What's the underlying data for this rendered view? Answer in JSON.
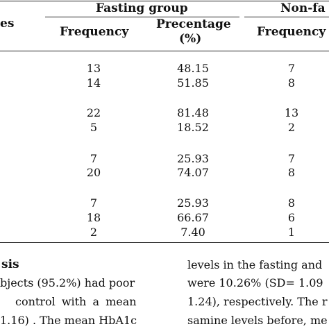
{
  "table": {
    "row_header_fragment": "es",
    "group_fasting": "Fasting group",
    "group_nonfasting_fragment": "Non-fa",
    "col_frequency": "Frequency",
    "col_percentage_line1": "Precentage",
    "col_percentage_line2": "(%)",
    "col_frequency_nf": "Frequency",
    "rows": [
      {
        "freq": "13",
        "pct": "48.15",
        "nf": "7"
      },
      {
        "freq": "14",
        "pct": "51.85",
        "nf": "8"
      },
      {
        "freq": "22",
        "pct": "81.48",
        "nf": "13"
      },
      {
        "freq": "5",
        "pct": "18.52",
        "nf": "2"
      },
      {
        "freq": "7",
        "pct": "25.93",
        "nf": "7"
      },
      {
        "freq": "20",
        "pct": "74.07",
        "nf": "8"
      },
      {
        "freq": "7",
        "pct": "25.93",
        "nf": "8"
      },
      {
        "freq": "18",
        "pct": "66.67",
        "nf": "6"
      },
      {
        "freq": "2",
        "pct": "7.40",
        "nf": "1"
      }
    ]
  },
  "text_left": {
    "heading_fragment": "sis",
    "line1": "bjects (95.2%) had poor",
    "line2": "control with a mean",
    "line3": "1.16) . The mean HbA1c"
  },
  "text_right": {
    "line1": "levels in the fasting and",
    "line2": "were 10.26% (SD= 1.09",
    "line3": "1.24), respectively. The r",
    "line4": "samine levels before, me"
  }
}
